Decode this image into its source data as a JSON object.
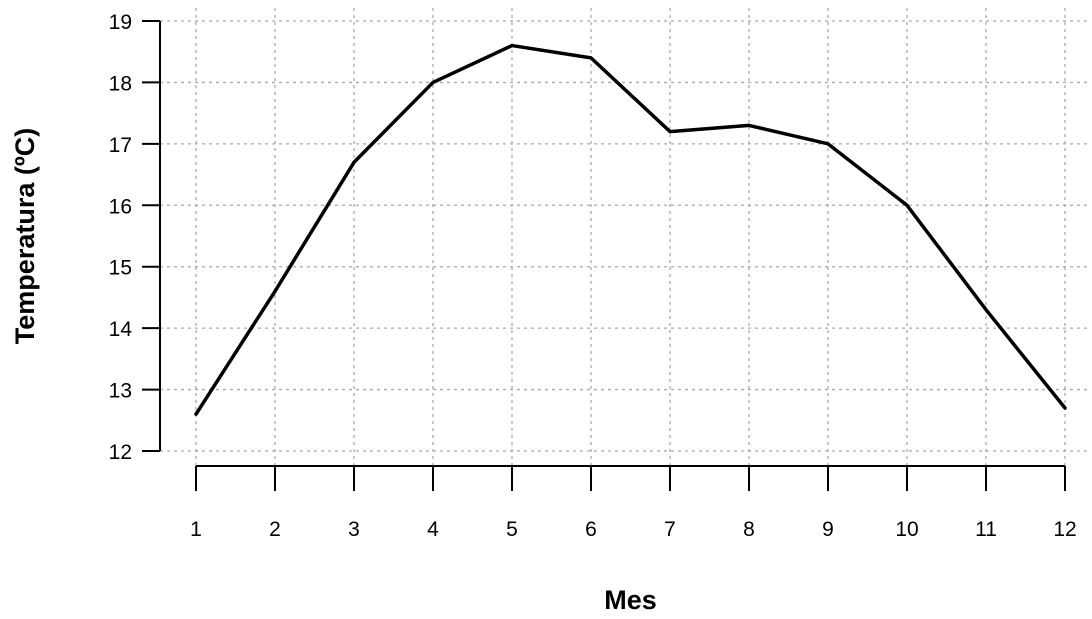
{
  "chart_data": {
    "type": "line",
    "title": "",
    "xlabel": "Mes",
    "ylabel": "Temperatura (ºC)",
    "x": [
      1,
      2,
      3,
      4,
      5,
      6,
      7,
      8,
      9,
      10,
      11,
      12
    ],
    "series": [
      {
        "values": [
          12.6,
          14.6,
          16.7,
          18.0,
          18.6,
          18.4,
          17.2,
          17.3,
          17.0,
          16.0,
          14.3,
          12.7
        ]
      }
    ],
    "xlim": [
      1,
      12
    ],
    "ylim": [
      12,
      19
    ],
    "xticks": [
      "1",
      "2",
      "3",
      "4",
      "5",
      "6",
      "7",
      "8",
      "9",
      "10",
      "11",
      "12"
    ],
    "yticks": [
      "12",
      "13",
      "14",
      "15",
      "16",
      "17",
      "18",
      "19"
    ],
    "grid": true,
    "line_color": "#000000",
    "grid_color": "#a9a9a9"
  }
}
